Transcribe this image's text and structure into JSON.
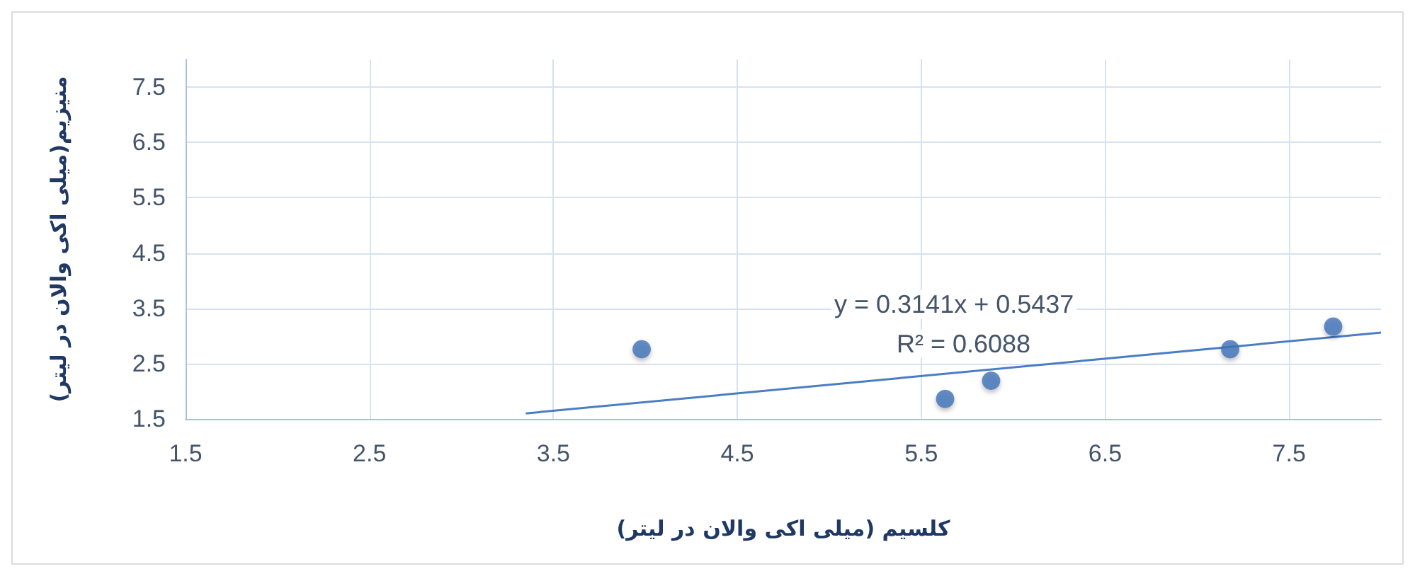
{
  "chart_data": {
    "type": "scatter",
    "xlabel": "کلسیم (میلی اکی والان در لیتر)",
    "ylabel": "منیزیم(میلی اکی والان در لیتر)",
    "series": [
      {
        "color": "#3d72b8",
        "x": [
          3.98,
          5.63,
          5.88,
          7.18,
          7.74
        ],
        "values": [
          2.76,
          1.86,
          2.19,
          2.76,
          3.17
        ]
      },
      {
        "type": "line",
        "color": "#4a7ec4",
        "x": [
          3.35,
          8
        ],
        "values": [
          1.6,
          3.06
        ],
        "marker": "none"
      }
    ],
    "annotations": [
      "y = 0.3141x + 0.5437",
      "R² = 0.6088"
    ],
    "xlim": [
      1.5,
      8
    ],
    "ylim": [
      1.5,
      8
    ],
    "xticks": [
      1.5,
      2.5,
      3.5,
      4.5,
      5.5,
      6.5,
      7.5
    ],
    "yticks": [
      1.5,
      2.5,
      3.5,
      4.5,
      5.5,
      6.5,
      7.5
    ],
    "grid": true,
    "marker": "circle"
  }
}
